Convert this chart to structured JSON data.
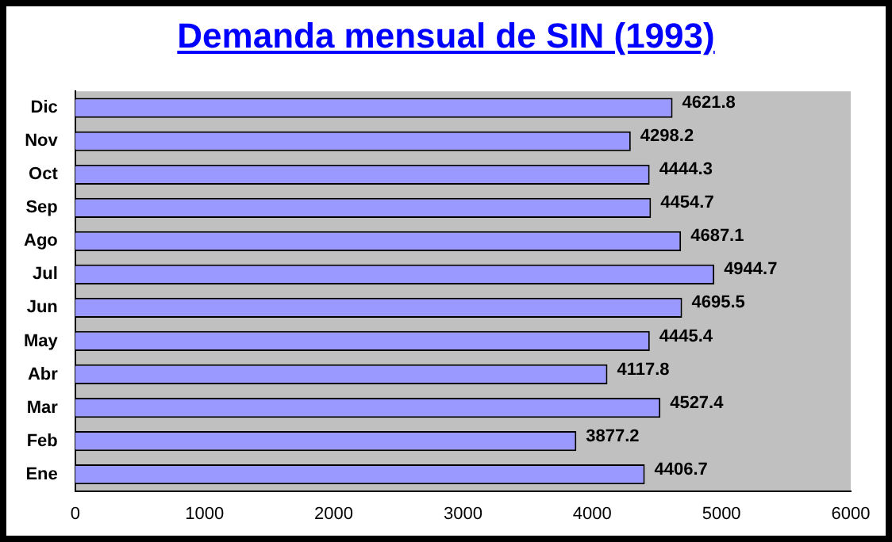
{
  "chart_data": {
    "type": "bar",
    "orientation": "horizontal",
    "title": "Demanda mensual de SIN (1993)",
    "categories": [
      "Dic",
      "Nov",
      "Oct",
      "Sep",
      "Ago",
      "Jul",
      "Jun",
      "May",
      "Abr",
      "Mar",
      "Feb",
      "Ene"
    ],
    "values": [
      4621.8,
      4298.2,
      4444.3,
      4454.7,
      4687.1,
      4944.7,
      4695.5,
      4445.4,
      4117.8,
      4527.4,
      3877.2,
      4406.7
    ],
    "color": "#9999ff",
    "xlim": [
      0,
      6000
    ],
    "xticks": [
      0,
      1000,
      2000,
      3000,
      4000,
      5000,
      6000
    ],
    "grid": false,
    "legend": false,
    "data_labels": true
  }
}
